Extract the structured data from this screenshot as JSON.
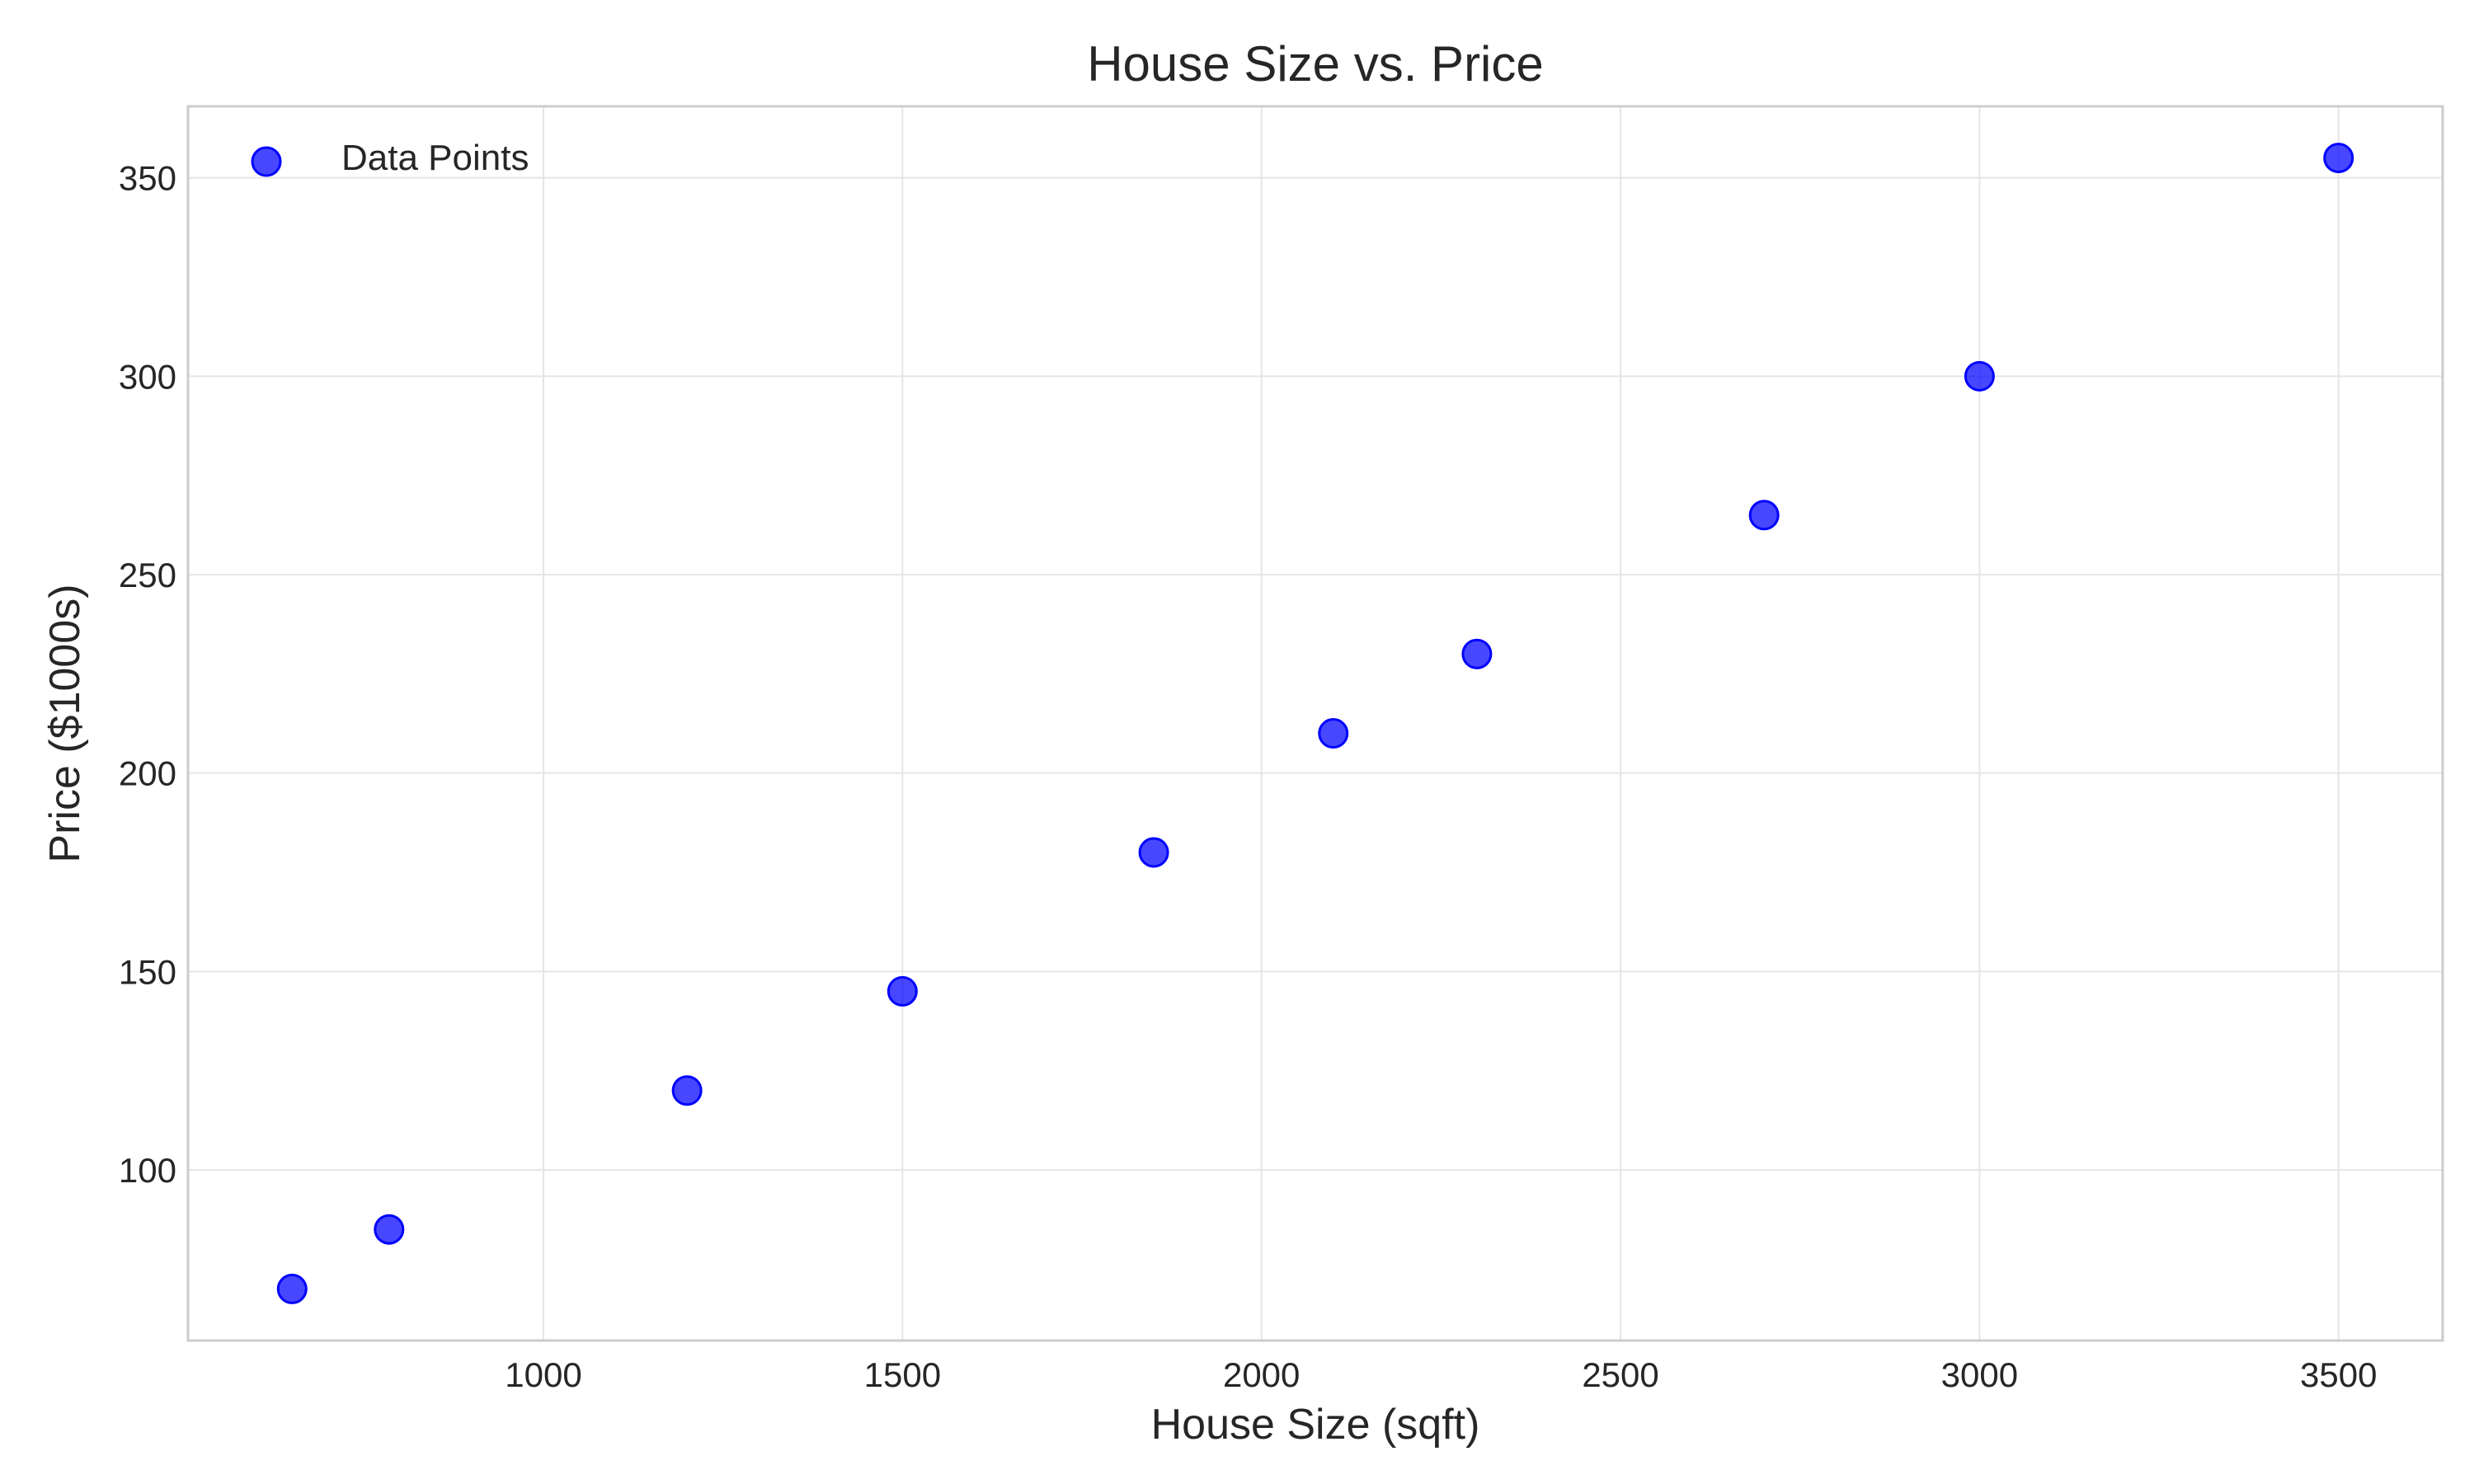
{
  "chart_data": {
    "type": "scatter",
    "title": "House Size vs. Price",
    "xlabel": "House Size (sqft)",
    "ylabel": "Price ($1000s)",
    "xlim": [
      505,
      3645
    ],
    "ylim": [
      57,
      368
    ],
    "xticks": [
      1000,
      1500,
      2000,
      2500,
      3000,
      3500
    ],
    "yticks": [
      100,
      150,
      200,
      250,
      300,
      350
    ],
    "grid": true,
    "legend_position": "top-left",
    "series": [
      {
        "name": "Data Points",
        "color": "#0000ff",
        "x": [
          650,
          785,
          1200,
          1500,
          1850,
          2100,
          2300,
          2700,
          3000,
          3500
        ],
        "y": [
          70,
          85,
          120,
          145,
          180,
          210,
          230,
          265,
          300,
          355
        ]
      }
    ]
  }
}
